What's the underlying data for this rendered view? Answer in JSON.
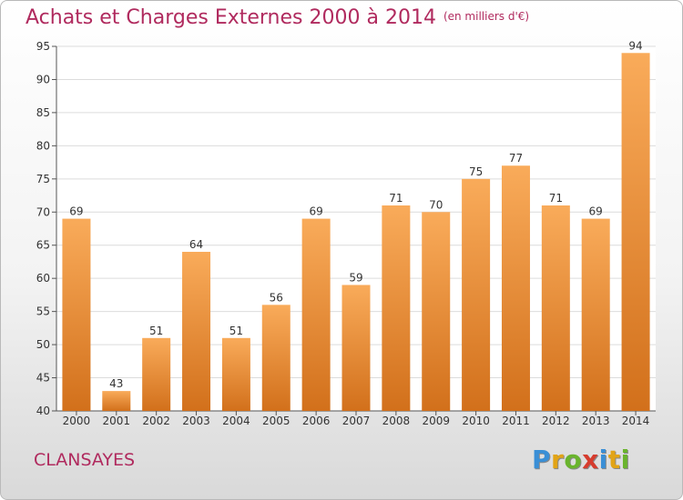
{
  "chart_data": {
    "type": "bar",
    "title": "Achats et Charges Externes 2000 à 2014",
    "subtitle": "(en milliers d'€)",
    "categories": [
      "2000",
      "2001",
      "2002",
      "2003",
      "2004",
      "2005",
      "2006",
      "2007",
      "2008",
      "2009",
      "2010",
      "2011",
      "2012",
      "2013",
      "2014"
    ],
    "values": [
      69,
      43,
      51,
      64,
      51,
      56,
      69,
      59,
      71,
      70,
      75,
      77,
      71,
      69,
      94
    ],
    "ylim": [
      40,
      95
    ],
    "yticks": [
      40,
      45,
      50,
      55,
      60,
      65,
      70,
      75,
      80,
      85,
      90,
      95
    ],
    "grid": true,
    "colors": {
      "bar_light": "#f9ab5a",
      "bar_dark": "#d2701b",
      "title": "#b02a5e"
    }
  },
  "footer": {
    "commune": "CLANSAYES",
    "logo_letters": [
      "P",
      "r",
      "o",
      "x",
      "i",
      "t",
      "i"
    ]
  }
}
